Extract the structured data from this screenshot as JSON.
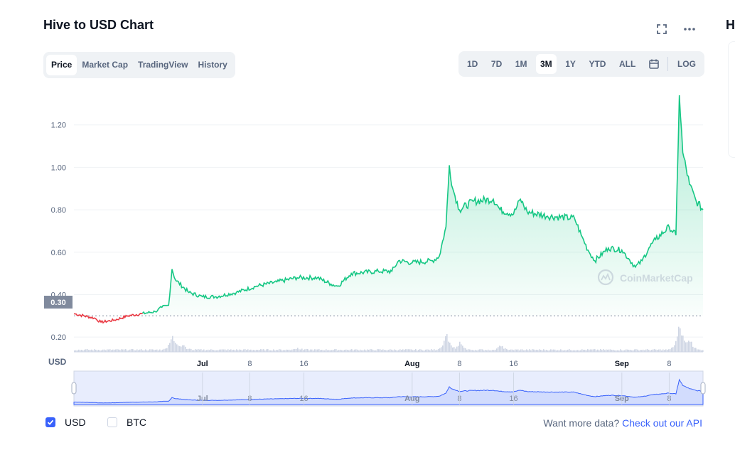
{
  "header": {
    "title": "Hive to USD Chart",
    "right_title": "H"
  },
  "tabs": [
    {
      "label": "Price",
      "active": true
    },
    {
      "label": "Market Cap",
      "active": false
    },
    {
      "label": "TradingView",
      "active": false
    },
    {
      "label": "History",
      "active": false
    }
  ],
  "ranges": [
    {
      "label": "1D",
      "active": false
    },
    {
      "label": "7D",
      "active": false
    },
    {
      "label": "1M",
      "active": false
    },
    {
      "label": "3M",
      "active": true
    },
    {
      "label": "1Y",
      "active": false
    },
    {
      "label": "YTD",
      "active": false
    },
    {
      "label": "ALL",
      "active": false
    }
  ],
  "log_label": "LOG",
  "icons": {
    "fullscreen": "fullscreen-icon",
    "more": "more-dots-icon",
    "calendar": "calendar-icon",
    "checkmark": "checkmark-icon"
  },
  "watermark": "CoinMarketCap",
  "options": {
    "usd_label": "USD",
    "usd_checked": true,
    "btc_label": "BTC",
    "btc_checked": false
  },
  "api": {
    "prefix": "Want more data?",
    "link": "Check out our API"
  },
  "colors": {
    "up": "#16c784",
    "down": "#ea3943",
    "accent": "#3861fb",
    "baseline": "#808a9d"
  },
  "chart_data": {
    "type": "line",
    "y_axis_label": "USD",
    "y_ticks": [
      "0.20",
      "0.40",
      "0.60",
      "0.80",
      "1.00",
      "1.20"
    ],
    "ylim": [
      0.13,
      1.36
    ],
    "baseline_value": "0.30",
    "xlim": [
      "2021-06-12",
      "2021-09-13"
    ],
    "x_ticks": [
      {
        "label": "Jul",
        "date": "2021-07-01",
        "bold": true
      },
      {
        "label": "8",
        "date": "2021-07-08",
        "bold": false
      },
      {
        "label": "16",
        "date": "2021-07-16",
        "bold": false
      },
      {
        "label": "Aug",
        "date": "2021-08-01",
        "bold": true
      },
      {
        "label": "8",
        "date": "2021-08-08",
        "bold": false
      },
      {
        "label": "16",
        "date": "2021-08-16",
        "bold": false
      },
      {
        "label": "Sep",
        "date": "2021-09-01",
        "bold": true
      },
      {
        "label": "8",
        "date": "2021-09-08",
        "bold": false
      }
    ],
    "series": [
      {
        "values": [
          {
            "date": "2021-06-12",
            "price": 0.31
          },
          {
            "date": "2021-06-15",
            "price": 0.29
          },
          {
            "date": "2021-06-16",
            "price": 0.27
          },
          {
            "date": "2021-06-18",
            "price": 0.28
          },
          {
            "date": "2021-06-20",
            "price": 0.3
          },
          {
            "date": "2021-06-22",
            "price": 0.31
          },
          {
            "date": "2021-06-24",
            "price": 0.32
          },
          {
            "date": "2021-06-25",
            "price": 0.34
          },
          {
            "date": "2021-06-26",
            "price": 0.35
          },
          {
            "date": "2021-06-26T12",
            "price": 0.52
          },
          {
            "date": "2021-06-27",
            "price": 0.47
          },
          {
            "date": "2021-06-29",
            "price": 0.41
          },
          {
            "date": "2021-07-01",
            "price": 0.39
          },
          {
            "date": "2021-07-03",
            "price": 0.39
          },
          {
            "date": "2021-07-06",
            "price": 0.41
          },
          {
            "date": "2021-07-09",
            "price": 0.44
          },
          {
            "date": "2021-07-12",
            "price": 0.46
          },
          {
            "date": "2021-07-15",
            "price": 0.48
          },
          {
            "date": "2021-07-18",
            "price": 0.48
          },
          {
            "date": "2021-07-20",
            "price": 0.45
          },
          {
            "date": "2021-07-21",
            "price": 0.44
          },
          {
            "date": "2021-07-23",
            "price": 0.5
          },
          {
            "date": "2021-07-27",
            "price": 0.51
          },
          {
            "date": "2021-07-29",
            "price": 0.51
          },
          {
            "date": "2021-07-30",
            "price": 0.56
          },
          {
            "date": "2021-08-01",
            "price": 0.55
          },
          {
            "date": "2021-08-04",
            "price": 0.56
          },
          {
            "date": "2021-08-05",
            "price": 0.58
          },
          {
            "date": "2021-08-06",
            "price": 0.72
          },
          {
            "date": "2021-08-06T12",
            "price": 1.01
          },
          {
            "date": "2021-08-07",
            "price": 0.9
          },
          {
            "date": "2021-08-08",
            "price": 0.8
          },
          {
            "date": "2021-08-10",
            "price": 0.84
          },
          {
            "date": "2021-08-13",
            "price": 0.85
          },
          {
            "date": "2021-08-14",
            "price": 0.8
          },
          {
            "date": "2021-08-16",
            "price": 0.78
          },
          {
            "date": "2021-08-17",
            "price": 0.85
          },
          {
            "date": "2021-08-18",
            "price": 0.79
          },
          {
            "date": "2021-08-21",
            "price": 0.77
          },
          {
            "date": "2021-08-25",
            "price": 0.76
          },
          {
            "date": "2021-08-26",
            "price": 0.68
          },
          {
            "date": "2021-08-27",
            "price": 0.61
          },
          {
            "date": "2021-08-28",
            "price": 0.56
          },
          {
            "date": "2021-08-30",
            "price": 0.62
          },
          {
            "date": "2021-09-01",
            "price": 0.61
          },
          {
            "date": "2021-09-02",
            "price": 0.57
          },
          {
            "date": "2021-09-03",
            "price": 0.53
          },
          {
            "date": "2021-09-04",
            "price": 0.56
          },
          {
            "date": "2021-09-05",
            "price": 0.62
          },
          {
            "date": "2021-09-06",
            "price": 0.66
          },
          {
            "date": "2021-09-08",
            "price": 0.72
          },
          {
            "date": "2021-09-09",
            "price": 0.68
          },
          {
            "date": "2021-09-09T12",
            "price": 1.34
          },
          {
            "date": "2021-09-10",
            "price": 1.07
          },
          {
            "date": "2021-09-11",
            "price": 0.92
          },
          {
            "date": "2021-09-12",
            "price": 0.84
          },
          {
            "date": "2021-09-13",
            "price": 0.8
          },
          {
            "date": "2021-09-14",
            "price": 0.76
          },
          {
            "date": "2021-09-15",
            "price": 0.81
          },
          {
            "date": "2021-09-16",
            "price": 0.86
          }
        ]
      }
    ],
    "volume_relative": [
      {
        "date": "2021-06-26T12",
        "v": 1.0
      },
      {
        "date": "2021-06-28",
        "v": 0.35
      },
      {
        "date": "2021-07-15",
        "v": 0.12
      },
      {
        "date": "2021-08-06",
        "v": 0.95
      },
      {
        "date": "2021-08-08",
        "v": 0.4
      },
      {
        "date": "2021-08-14",
        "v": 0.25
      },
      {
        "date": "2021-09-09T12",
        "v": 1.7
      },
      {
        "date": "2021-09-11",
        "v": 0.6
      }
    ]
  }
}
